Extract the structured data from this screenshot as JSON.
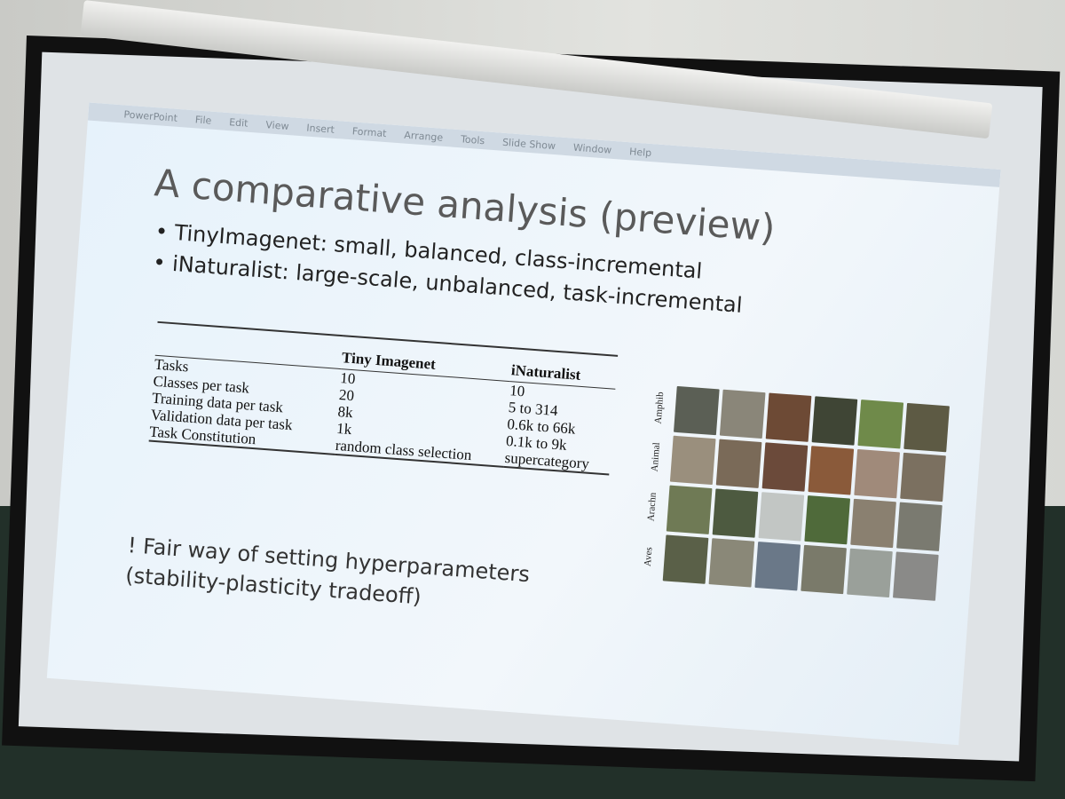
{
  "menu_bar": {
    "items": [
      "PowerPoint",
      "File",
      "Edit",
      "View",
      "Insert",
      "Format",
      "Arrange",
      "Tools",
      "Slide Show",
      "Window",
      "Help"
    ]
  },
  "slide": {
    "title": "A comparative analysis (preview)",
    "bullets": [
      "TinyImagenet: small, balanced, class-incremental",
      "iNaturalist: large-scale, unbalanced, task-incremental"
    ],
    "table": {
      "columns": [
        "Tiny Imagenet",
        "iNaturalist"
      ],
      "rows": [
        [
          "Tasks",
          "10",
          "10"
        ],
        [
          "Classes per task",
          "20",
          "5 to 314"
        ],
        [
          "Training data per task",
          "8k",
          "0.6k to 66k"
        ],
        [
          "Validation data per task",
          "1k",
          "0.1k to 9k"
        ],
        [
          "Task Constitution",
          "random class selection",
          "supercategory"
        ]
      ]
    },
    "image_grid": {
      "row_labels": [
        "Amphib",
        "Animal",
        "Arachn",
        "Aves"
      ]
    },
    "note": [
      "! Fair way of setting hyperparameters",
      "(stability-plasticity tradeoff)"
    ]
  }
}
